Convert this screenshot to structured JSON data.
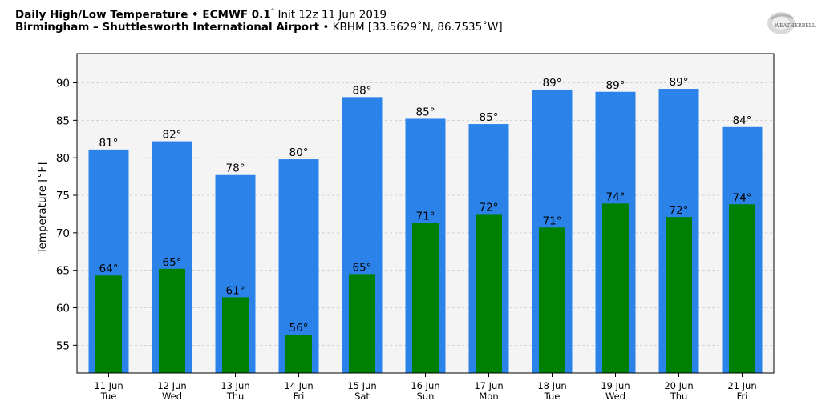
{
  "header": {
    "title_bold": "Daily High/Low Temperature • ECMWF 0.1",
    "title_deg": "°",
    "title_rest": " Init 12z 11 Jun 2019",
    "location_bold": "Birmingham – Shuttlesworth International Airport",
    "location_rest": " • KBHM [33.5629˚N, 86.7535˚W]"
  },
  "logo": {
    "text": "WEATHERBELL",
    "icon": "weatherbell-logo-icon"
  },
  "chart_data": {
    "type": "bar",
    "title": "Daily High/Low Temperature • ECMWF 0.1° Init 12z 11 Jun 2019",
    "ylabel": "Temperature [°F]",
    "xlabel": "",
    "ylim": [
      51.3,
      93.9
    ],
    "yticks": [
      55,
      60,
      65,
      70,
      75,
      80,
      85,
      90
    ],
    "grid": true,
    "categories": [
      [
        "11 Jun",
        "Tue"
      ],
      [
        "12 Jun",
        "Wed"
      ],
      [
        "13 Jun",
        "Thu"
      ],
      [
        "14 Jun",
        "Fri"
      ],
      [
        "15 Jun",
        "Sat"
      ],
      [
        "16 Jun",
        "Sun"
      ],
      [
        "17 Jun",
        "Mon"
      ],
      [
        "18 Jun",
        "Tue"
      ],
      [
        "19 Jun",
        "Wed"
      ],
      [
        "20 Jun",
        "Thu"
      ],
      [
        "21 Jun",
        "Fri"
      ]
    ],
    "series": [
      {
        "color": "#2b83ea",
        "values": [
          81.1,
          82.2,
          77.7,
          79.8,
          88.1,
          85.2,
          84.5,
          89.1,
          88.8,
          89.2,
          84.1
        ],
        "labels": [
          "81°",
          "82°",
          "78°",
          "80°",
          "88°",
          "85°",
          "85°",
          "89°",
          "89°",
          "89°",
          "84°"
        ]
      },
      {
        "color": "#008000",
        "values": [
          64.3,
          65.2,
          61.4,
          56.4,
          64.5,
          71.3,
          72.5,
          70.7,
          73.9,
          72.1,
          73.8
        ],
        "labels": [
          "64°",
          "65°",
          "61°",
          "56°",
          "65°",
          "71°",
          "72°",
          "71°",
          "74°",
          "72°",
          "74°"
        ]
      }
    ]
  }
}
